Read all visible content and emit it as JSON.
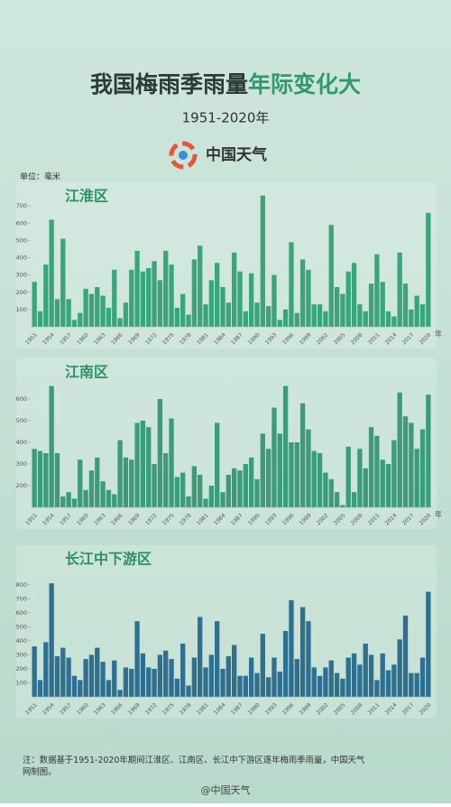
{
  "header": {
    "title_main": "我国梅雨季雨量",
    "title_highlight": "年际变化大",
    "subtitle": "1951-2020年",
    "logo_text": "中国天气",
    "unit": "单位：毫米"
  },
  "chart_data": [
    {
      "type": "bar",
      "title": "江淮区",
      "color": "#3aa57a",
      "x_unit": "年",
      "categories": [
        "1951",
        null,
        null,
        "1954",
        null,
        null,
        "1957",
        null,
        null,
        "1960",
        null,
        null,
        "1963",
        null,
        null,
        "1966",
        null,
        null,
        "1969",
        null,
        null,
        "1972",
        null,
        null,
        "1975",
        null,
        null,
        "1978",
        null,
        null,
        "1981",
        null,
        null,
        "1984",
        null,
        null,
        "1987",
        null,
        null,
        "1990",
        null,
        null,
        "1993",
        null,
        null,
        "1996",
        null,
        null,
        "1999",
        null,
        null,
        "2002",
        null,
        null,
        "2005",
        null,
        null,
        "2008",
        null,
        null,
        "2011",
        null,
        null,
        "2014",
        null,
        null,
        "2017",
        null,
        null,
        "2020"
      ],
      "values": [
        260,
        90,
        360,
        620,
        160,
        510,
        160,
        40,
        80,
        220,
        190,
        230,
        180,
        110,
        330,
        50,
        140,
        330,
        440,
        320,
        340,
        380,
        270,
        440,
        360,
        110,
        190,
        70,
        390,
        470,
        130,
        270,
        370,
        230,
        140,
        430,
        320,
        90,
        310,
        140,
        760,
        120,
        300,
        40,
        100,
        490,
        80,
        390,
        330,
        130,
        130,
        90,
        590,
        230,
        190,
        320,
        370,
        130,
        90,
        250,
        420,
        260,
        90,
        60,
        430,
        250,
        100,
        180,
        130,
        660
      ],
      "ylim": [
        0,
        800
      ],
      "yticks": [
        100,
        200,
        300,
        400,
        500,
        600,
        700
      ]
    },
    {
      "type": "bar",
      "title": "江南区",
      "color": "#3c9b7a",
      "x_unit": "年",
      "categories": [
        "1951",
        null,
        null,
        "1954",
        null,
        null,
        "1957",
        null,
        null,
        "1960",
        null,
        null,
        "1963",
        null,
        null,
        "1966",
        null,
        null,
        "1969",
        null,
        null,
        "1972",
        null,
        null,
        "1975",
        null,
        null,
        "1978",
        null,
        null,
        "1981",
        null,
        null,
        "1984",
        null,
        null,
        "1987",
        null,
        null,
        "1990",
        null,
        null,
        "1993",
        null,
        null,
        "1996",
        null,
        null,
        "1999",
        null,
        null,
        "2002",
        null,
        null,
        "2005",
        null,
        null,
        "2008",
        null,
        null,
        "2011",
        null,
        null,
        "2014",
        null,
        null,
        "2017",
        null,
        null,
        "2020"
      ],
      "values": [
        370,
        360,
        350,
        660,
        350,
        150,
        170,
        140,
        320,
        180,
        270,
        330,
        220,
        180,
        160,
        410,
        330,
        320,
        490,
        500,
        470,
        300,
        600,
        350,
        510,
        240,
        260,
        150,
        290,
        250,
        140,
        200,
        490,
        170,
        250,
        280,
        270,
        300,
        330,
        230,
        440,
        370,
        560,
        440,
        660,
        400,
        400,
        580,
        460,
        360,
        350,
        260,
        230,
        170,
        110,
        380,
        170,
        370,
        280,
        470,
        430,
        320,
        300,
        410,
        630,
        520,
        490,
        370,
        460,
        620
      ],
      "ylim": [
        100,
        700
      ],
      "yticks": [
        200,
        300,
        400,
        500,
        600
      ]
    },
    {
      "type": "bar",
      "title": "长江中下游区",
      "color": "#2f6f8f",
      "categories": [
        "1951",
        null,
        null,
        "1954",
        null,
        null,
        "1957",
        null,
        null,
        "1960",
        null,
        null,
        "1963",
        null,
        null,
        "1966",
        null,
        null,
        "1969",
        null,
        null,
        "1972",
        null,
        null,
        "1975",
        null,
        null,
        "1978",
        null,
        null,
        "1981",
        null,
        null,
        "1984",
        null,
        null,
        "1987",
        null,
        null,
        "1990",
        null,
        null,
        "1993",
        null,
        null,
        "1996",
        null,
        null,
        "1999",
        null,
        null,
        "2002",
        null,
        null,
        "2005",
        null,
        null,
        "2008",
        null,
        null,
        "2011",
        null,
        null,
        "2014",
        null,
        null,
        "2017",
        null,
        null,
        "2020"
      ],
      "values": [
        360,
        120,
        390,
        810,
        290,
        350,
        280,
        150,
        120,
        270,
        300,
        350,
        250,
        120,
        260,
        50,
        210,
        200,
        540,
        310,
        210,
        200,
        300,
        330,
        270,
        130,
        380,
        80,
        280,
        570,
        210,
        300,
        540,
        200,
        290,
        370,
        150,
        150,
        280,
        170,
        450,
        140,
        280,
        180,
        470,
        690,
        270,
        640,
        540,
        210,
        150,
        210,
        260,
        170,
        130,
        280,
        310,
        230,
        380,
        300,
        120,
        310,
        190,
        230,
        410,
        580,
        170,
        170,
        280,
        750
      ],
      "ylim": [
        0,
        850
      ],
      "yticks": [
        100,
        200,
        300,
        400,
        500,
        600,
        700,
        800
      ]
    }
  ],
  "footer": {
    "note": "注：数据基于1951-2020年期间江淮区、江南区、长江中下游区逐年梅雨季雨量，中国天气网制图。",
    "source": "@中国天气"
  }
}
